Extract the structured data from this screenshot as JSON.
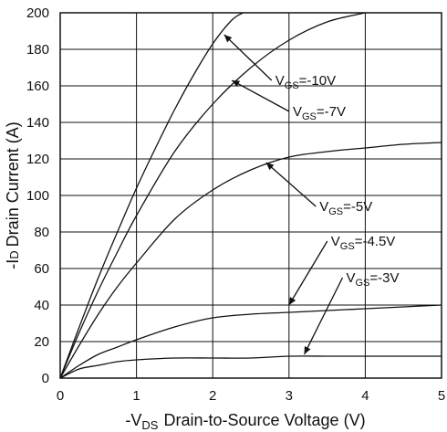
{
  "chart_data": {
    "type": "line",
    "title": "",
    "xlabel": {
      "prefix": "-V",
      "sub": "DS",
      "text": "Drain-to-Source Voltage (V)"
    },
    "ylabel": {
      "prefix": "-I",
      "sub": "D",
      "text": "Drain Current (A)"
    },
    "xlim": [
      0,
      5
    ],
    "ylim": [
      0,
      200
    ],
    "xticks": [
      "0",
      "1",
      "2",
      "3",
      "4",
      "5"
    ],
    "yticks": [
      "0",
      "20",
      "40",
      "60",
      "80",
      "100",
      "120",
      "140",
      "160",
      "180",
      "200"
    ],
    "grid": true,
    "series": [
      {
        "name": "VGS=-10V",
        "label": {
          "prefix": "V",
          "sub": "GS",
          "value": "=-10V"
        },
        "x": [
          0,
          0.25,
          0.5,
          0.75,
          1.0,
          1.25,
          1.5,
          1.75,
          2.0,
          2.25,
          2.4
        ],
        "y": [
          0,
          28,
          55,
          80,
          104,
          126,
          147,
          166,
          183,
          196,
          200
        ]
      },
      {
        "name": "VGS=-7V",
        "label": {
          "prefix": "V",
          "sub": "GS",
          "value": "=-7V"
        },
        "x": [
          0,
          0.25,
          0.5,
          0.75,
          1.0,
          1.5,
          2.0,
          2.5,
          3.0,
          3.5,
          4.0
        ],
        "y": [
          0,
          25,
          48,
          69,
          89,
          124,
          150,
          170,
          185,
          195,
          200
        ]
      },
      {
        "name": "VGS=-5V",
        "label": {
          "prefix": "V",
          "sub": "GS",
          "value": "=-5V"
        },
        "x": [
          0,
          0.25,
          0.5,
          0.75,
          1.0,
          1.5,
          2.0,
          2.5,
          3.0,
          3.5,
          4.0,
          4.5,
          5.0
        ],
        "y": [
          0,
          18,
          35,
          50,
          63,
          87,
          103,
          114,
          121,
          124,
          126,
          128,
          129
        ]
      },
      {
        "name": "VGS=-4.5V",
        "label": {
          "prefix": "V",
          "sub": "GS",
          "value": "=-4.5V"
        },
        "x": [
          0,
          0.25,
          0.5,
          0.75,
          1.0,
          1.5,
          2.0,
          2.5,
          3.0,
          3.5,
          4.0,
          4.5,
          5.0
        ],
        "y": [
          0,
          7,
          13,
          17,
          21,
          28,
          33,
          35,
          36,
          37,
          38,
          39,
          40
        ]
      },
      {
        "name": "VGS=-3V",
        "label": {
          "prefix": "V",
          "sub": "GS",
          "value": "=-3V"
        },
        "x": [
          0,
          0.25,
          0.5,
          0.75,
          1.0,
          1.5,
          2.0,
          2.5,
          3.0,
          3.5,
          4.0,
          4.5,
          5.0
        ],
        "y": [
          0,
          5,
          7,
          9,
          10,
          11,
          11,
          11,
          12,
          12,
          12,
          12,
          12
        ]
      }
    ],
    "annotations": [
      {
        "series": "VGS=-10V",
        "text": {
          "prefix": "V",
          "sub": "GS",
          "value": "=-10V"
        },
        "arrow_to": [
          2.15,
          188
        ],
        "text_at": [
          2.82,
          163
        ]
      },
      {
        "series": "VGS=-7V",
        "text": {
          "prefix": "V",
          "sub": "GS",
          "value": "=-7V"
        },
        "arrow_to": [
          2.25,
          163
        ],
        "text_at": [
          3.05,
          146
        ]
      },
      {
        "series": "VGS=-5V",
        "text": {
          "prefix": "V",
          "sub": "GS",
          "value": "=-5V"
        },
        "arrow_to": [
          2.7,
          118
        ],
        "text_at": [
          3.4,
          94
        ]
      },
      {
        "series": "VGS=-4.5V",
        "text": {
          "prefix": "V",
          "sub": "GS",
          "value": "=-4.5V"
        },
        "arrow_to": [
          3.0,
          40
        ],
        "text_at": [
          3.55,
          75
        ]
      },
      {
        "series": "VGS=-3V",
        "text": {
          "prefix": "V",
          "sub": "GS",
          "value": "=-3V"
        },
        "arrow_to": [
          3.2,
          13
        ],
        "text_at": [
          3.75,
          55
        ]
      }
    ],
    "colors": {
      "line": "#111111",
      "grid": "#111111",
      "background": "#ffffff"
    }
  }
}
